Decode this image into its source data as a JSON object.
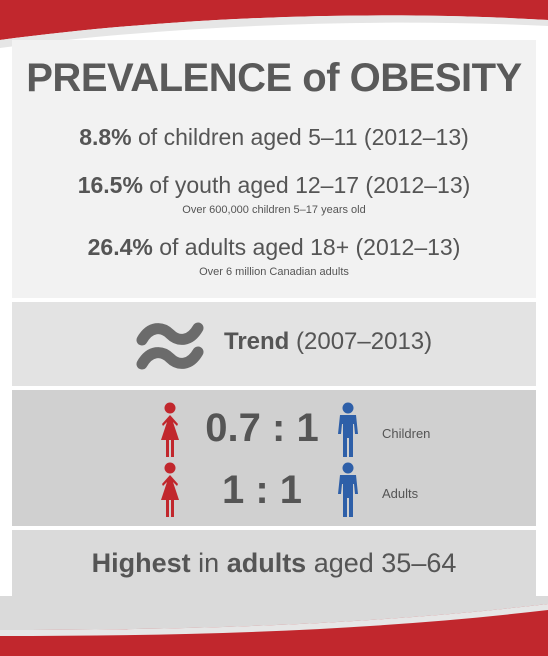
{
  "title": "PREVALENCE of OBESITY",
  "stats": [
    {
      "pct": "8.8%",
      "text": "of children aged 5–11 (2012–13)"
    },
    {
      "pct": "16.5%",
      "text": "of youth aged 12–17 (2012–13)",
      "sub": "Over 600,000 children 5–17 years old"
    },
    {
      "pct": "26.4%",
      "text": "of adults aged 18+ (2012–13)",
      "sub": "Over 6 million Canadian adults"
    }
  ],
  "trend": {
    "bold": "Trend",
    "years": "(2007–2013)",
    "icon": "approximately-equal-icon"
  },
  "ratios": [
    {
      "value": "0.7 : 1",
      "label": "Children"
    },
    {
      "value": "1 : 1",
      "label": "Adults"
    }
  ],
  "highest": {
    "w1": "Highest",
    "w2": "in",
    "w3": "adults",
    "w4": "aged 35–64"
  },
  "colors": {
    "red": "#c1272d",
    "blue": "#2e5fa8",
    "gray_text": "#555555"
  }
}
